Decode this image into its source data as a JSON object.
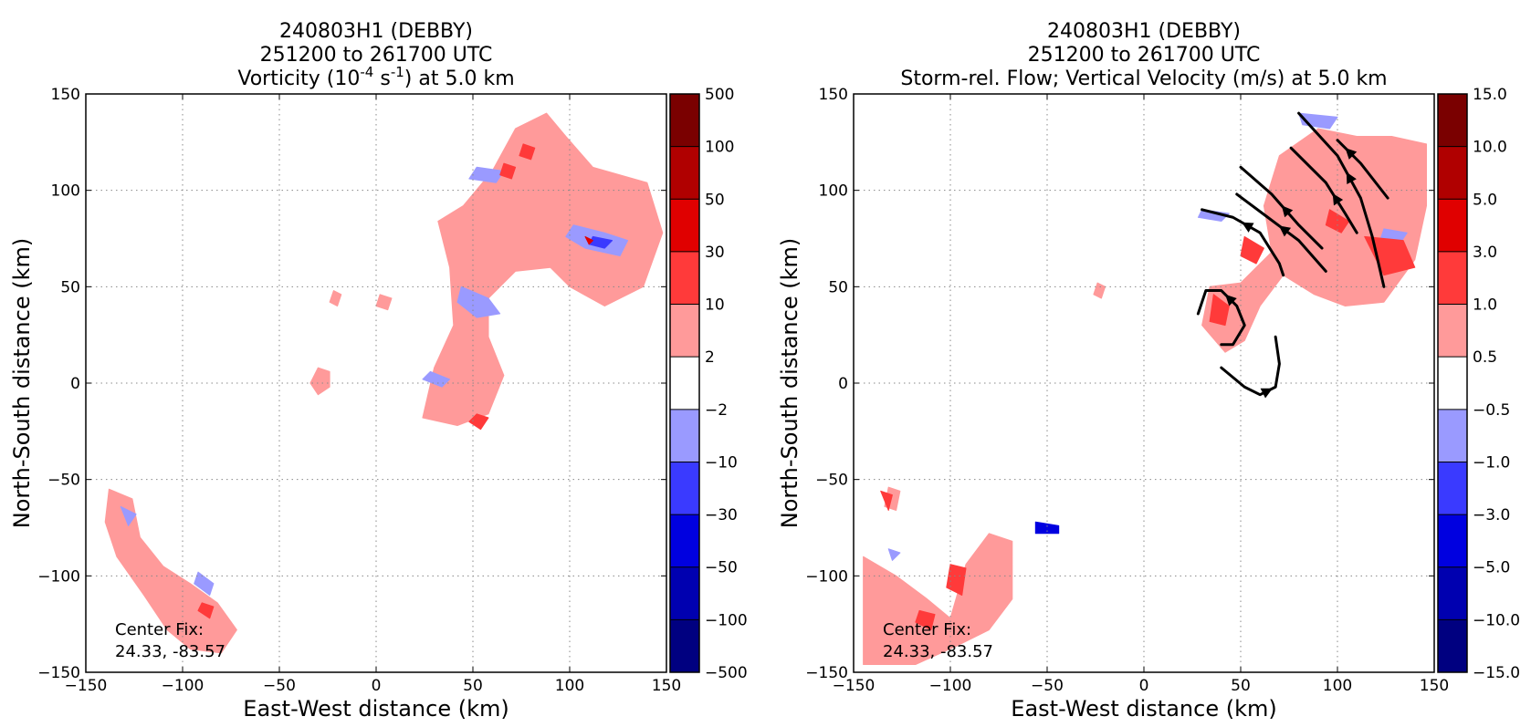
{
  "chart_data": [
    {
      "type": "contour-map",
      "title_lines": [
        "240803H1 (DEBBY)",
        "251200 to 261700 UTC"
      ],
      "title_field": {
        "prefix": "Vorticity (10",
        "exponent1": "-4",
        "middle": " s",
        "exponent2": "-1",
        "suffix": ") at 5.0 km"
      },
      "xlabel": "East-West distance (km)",
      "ylabel": "North-South distance (km)",
      "xlim": [
        -150,
        150
      ],
      "ylim": [
        -150,
        150
      ],
      "xticks": [
        "−150",
        "−100",
        "−50",
        "0",
        "50",
        "100",
        "150"
      ],
      "yticks": [
        "150",
        "100",
        "50",
        "0",
        "−50",
        "−100",
        "−150"
      ],
      "grid": true,
      "colorbar": {
        "labels": [
          "500",
          "100",
          "50",
          "30",
          "10",
          "2",
          "−2",
          "−10",
          "−30",
          "−50",
          "−100",
          "−500"
        ],
        "colors": [
          "#7a0000",
          "#b00000",
          "#e00000",
          "#ff3a3a",
          "#ff9a9a",
          "#ffffff",
          "#9a9aff",
          "#3a3aff",
          "#0000e0",
          "#0000b0",
          "#000080"
        ]
      },
      "annotation": {
        "line1": "Center Fix:",
        "line2": "24.33, -83.57"
      },
      "regions": [
        {
          "level": "pos1",
          "points": [
            [
              32,
              84
            ],
            [
              45,
              92
            ],
            [
              60,
              110
            ],
            [
              72,
              132
            ],
            [
              88,
              140
            ],
            [
              98,
              128
            ],
            [
              112,
              112
            ],
            [
              140,
              104
            ],
            [
              148,
              78
            ],
            [
              138,
              50
            ],
            [
              118,
              40
            ],
            [
              100,
              50
            ],
            [
              90,
              60
            ],
            [
              72,
              58
            ],
            [
              58,
              44
            ],
            [
              58,
              24
            ],
            [
              66,
              4
            ],
            [
              58,
              -16
            ],
            [
              42,
              -22
            ],
            [
              24,
              -18
            ],
            [
              30,
              8
            ],
            [
              40,
              30
            ],
            [
              38,
              60
            ]
          ]
        },
        {
          "level": "pos1",
          "points": [
            [
              -138,
              -55
            ],
            [
              -126,
              -60
            ],
            [
              -122,
              -80
            ],
            [
              -110,
              -95
            ],
            [
              -96,
              -104
            ],
            [
              -82,
              -114
            ],
            [
              -72,
              -128
            ],
            [
              -80,
              -140
            ],
            [
              -96,
              -138
            ],
            [
              -108,
              -128
            ],
            [
              -120,
              -110
            ],
            [
              -134,
              -90
            ],
            [
              -140,
              -72
            ]
          ]
        },
        {
          "level": "pos1",
          "points": [
            [
              -30,
              8
            ],
            [
              -24,
              6
            ],
            [
              -24,
              -2
            ],
            [
              -30,
              -6
            ],
            [
              -34,
              0
            ]
          ]
        },
        {
          "level": "pos1",
          "points": [
            [
              -22,
              48
            ],
            [
              -18,
              46
            ],
            [
              -20,
              40
            ],
            [
              -24,
              42
            ]
          ]
        },
        {
          "level": "pos1",
          "points": [
            [
              2,
              46
            ],
            [
              8,
              44
            ],
            [
              6,
              38
            ],
            [
              0,
              40
            ]
          ]
        },
        {
          "level": "neg1",
          "points": [
            [
              44,
              50
            ],
            [
              58,
              44
            ],
            [
              64,
              36
            ],
            [
              52,
              34
            ],
            [
              42,
              42
            ]
          ]
        },
        {
          "level": "neg1",
          "points": [
            [
              102,
              82
            ],
            [
              118,
              78
            ],
            [
              130,
              74
            ],
            [
              126,
              66
            ],
            [
              108,
              70
            ],
            [
              98,
              76
            ]
          ]
        },
        {
          "level": "neg1",
          "points": [
            [
              52,
              112
            ],
            [
              66,
              110
            ],
            [
              62,
              104
            ],
            [
              48,
              106
            ]
          ]
        },
        {
          "level": "neg1",
          "points": [
            [
              28,
              6
            ],
            [
              38,
              2
            ],
            [
              34,
              -2
            ],
            [
              24,
              2
            ]
          ]
        },
        {
          "level": "neg1",
          "points": [
            [
              -92,
              -98
            ],
            [
              -84,
              -104
            ],
            [
              -86,
              -110
            ],
            [
              -94,
              -104
            ]
          ]
        },
        {
          "level": "neg1",
          "points": [
            [
              -132,
              -64
            ],
            [
              -124,
              -68
            ],
            [
              -128,
              -74
            ]
          ]
        },
        {
          "level": "pos2",
          "points": [
            [
              76,
              124
            ],
            [
              82,
              122
            ],
            [
              80,
              116
            ],
            [
              74,
              118
            ]
          ]
        },
        {
          "level": "pos2",
          "points": [
            [
              66,
              114
            ],
            [
              72,
              112
            ],
            [
              70,
              106
            ],
            [
              64,
              108
            ]
          ]
        },
        {
          "level": "pos2",
          "points": [
            [
              52,
              -16
            ],
            [
              58,
              -18
            ],
            [
              54,
              -24
            ],
            [
              48,
              -20
            ]
          ]
        },
        {
          "level": "pos2",
          "points": [
            [
              -90,
              -114
            ],
            [
              -84,
              -116
            ],
            [
              -86,
              -122
            ],
            [
              -92,
              -118
            ]
          ]
        },
        {
          "level": "neg2",
          "points": [
            [
              112,
              76
            ],
            [
              122,
              74
            ],
            [
              118,
              70
            ],
            [
              110,
              72
            ]
          ]
        },
        {
          "level": "pos3",
          "points": [
            [
              108,
              76
            ],
            [
              112,
              74
            ],
            [
              110,
              72
            ]
          ]
        }
      ]
    },
    {
      "type": "contour-map",
      "title_lines": [
        "240803H1 (DEBBY)",
        "251200 to 261700 UTC",
        "Storm-rel. Flow; Vertical Velocity (m/s) at 5.0 km"
      ],
      "xlabel": "East-West distance (km)",
      "ylabel": "North-South distance (km)",
      "xlim": [
        -150,
        150
      ],
      "ylim": [
        -150,
        150
      ],
      "xticks": [
        "−150",
        "−100",
        "−50",
        "0",
        "50",
        "100",
        "150"
      ],
      "yticks": [
        "150",
        "100",
        "50",
        "0",
        "−50",
        "−100",
        "−150"
      ],
      "grid": true,
      "colorbar": {
        "labels": [
          "15.0",
          "10.0",
          "5.0",
          "3.0",
          "1.0",
          "0.5",
          "−0.5",
          "−1.0",
          "−3.0",
          "−5.0",
          "−10.0",
          "−15.0"
        ],
        "colors": [
          "#7a0000",
          "#b00000",
          "#e00000",
          "#ff3a3a",
          "#ff9a9a",
          "#ffffff",
          "#9a9aff",
          "#3a3aff",
          "#0000e0",
          "#0000b0",
          "#000080"
        ]
      },
      "annotation": {
        "line1": "Center Fix:",
        "line2": "24.33, -83.57"
      },
      "regions": [
        {
          "level": "pos1",
          "points": [
            [
              34,
              50
            ],
            [
              50,
              52
            ],
            [
              66,
              68
            ],
            [
              62,
              92
            ],
            [
              70,
              118
            ],
            [
              90,
              132
            ],
            [
              110,
              128
            ],
            [
              128,
              128
            ],
            [
              146,
              124
            ],
            [
              146,
              92
            ],
            [
              140,
              64
            ],
            [
              124,
              42
            ],
            [
              104,
              40
            ],
            [
              88,
              46
            ],
            [
              72,
              56
            ],
            [
              60,
              40
            ],
            [
              52,
              22
            ],
            [
              42,
              16
            ],
            [
              30,
              30
            ]
          ]
        },
        {
          "level": "pos1",
          "points": [
            [
              -145,
              -90
            ],
            [
              -128,
              -100
            ],
            [
              -112,
              -112
            ],
            [
              -100,
              -122
            ],
            [
              -92,
              -94
            ],
            [
              -80,
              -78
            ],
            [
              -68,
              -82
            ],
            [
              -68,
              -112
            ],
            [
              -80,
              -128
            ],
            [
              -96,
              -136
            ],
            [
              -118,
              -146
            ],
            [
              -145,
              -146
            ]
          ]
        },
        {
          "level": "pos1",
          "points": [
            [
              -24,
              52
            ],
            [
              -20,
              50
            ],
            [
              -22,
              44
            ],
            [
              -26,
              46
            ]
          ]
        },
        {
          "level": "pos1",
          "points": [
            [
              -132,
              -54
            ],
            [
              -126,
              -56
            ],
            [
              -128,
              -66
            ],
            [
              -134,
              -64
            ]
          ]
        },
        {
          "level": "neg1",
          "points": [
            [
              80,
              140
            ],
            [
              100,
              138
            ],
            [
              96,
              132
            ],
            [
              82,
              134
            ]
          ]
        },
        {
          "level": "neg1",
          "points": [
            [
              30,
              90
            ],
            [
              44,
              88
            ],
            [
              40,
              84
            ],
            [
              28,
              86
            ]
          ]
        },
        {
          "level": "neg1",
          "points": [
            [
              124,
              80
            ],
            [
              136,
              78
            ],
            [
              132,
              72
            ],
            [
              122,
              74
            ]
          ]
        },
        {
          "level": "neg1",
          "points": [
            [
              -132,
              -86
            ],
            [
              -126,
              -88
            ],
            [
              -130,
              -92
            ]
          ]
        },
        {
          "level": "pos2",
          "points": [
            [
              36,
              46
            ],
            [
              44,
              40
            ],
            [
              42,
              30
            ],
            [
              34,
              32
            ]
          ]
        },
        {
          "level": "pos2",
          "points": [
            [
              114,
              76
            ],
            [
              134,
              74
            ],
            [
              140,
              60
            ],
            [
              124,
              56
            ]
          ]
        },
        {
          "level": "pos2",
          "points": [
            [
              52,
              76
            ],
            [
              62,
              70
            ],
            [
              58,
              62
            ],
            [
              50,
              66
            ]
          ]
        },
        {
          "level": "pos2",
          "points": [
            [
              96,
              90
            ],
            [
              106,
              84
            ],
            [
              102,
              78
            ],
            [
              94,
              82
            ]
          ]
        },
        {
          "level": "pos2",
          "points": [
            [
              -100,
              -94
            ],
            [
              -92,
              -96
            ],
            [
              -94,
              -110
            ],
            [
              -102,
              -106
            ]
          ]
        },
        {
          "level": "pos2",
          "points": [
            [
              -136,
              -56
            ],
            [
              -130,
              -58
            ],
            [
              -132,
              -66
            ]
          ]
        },
        {
          "level": "pos2",
          "points": [
            [
              -116,
              -118
            ],
            [
              -108,
              -120
            ],
            [
              -110,
              -128
            ],
            [
              -118,
              -124
            ]
          ]
        },
        {
          "level": "neg3",
          "points": [
            [
              -56,
              -72
            ],
            [
              -44,
              -74
            ],
            [
              -44,
              -78
            ],
            [
              -56,
              -78
            ]
          ]
        }
      ],
      "streamlines": [
        [
          [
            80,
            140
          ],
          [
            100,
            118
          ],
          [
            112,
            96
          ],
          [
            118,
            76
          ],
          [
            124,
            50
          ]
        ],
        [
          [
            100,
            126
          ],
          [
            112,
            114
          ],
          [
            126,
            96
          ]
        ],
        [
          [
            76,
            122
          ],
          [
            94,
            104
          ],
          [
            104,
            88
          ],
          [
            110,
            78
          ]
        ],
        [
          [
            50,
            112
          ],
          [
            66,
            98
          ],
          [
            80,
            82
          ],
          [
            92,
            70
          ]
        ],
        [
          [
            48,
            98
          ],
          [
            64,
            86
          ],
          [
            80,
            74
          ],
          [
            94,
            58
          ]
        ],
        [
          [
            30,
            90
          ],
          [
            46,
            86
          ],
          [
            60,
            78
          ],
          [
            70,
            62
          ],
          [
            72,
            56
          ]
        ],
        [
          [
            28,
            36
          ],
          [
            32,
            48
          ],
          [
            40,
            48
          ],
          [
            48,
            40
          ],
          [
            52,
            30
          ],
          [
            46,
            20
          ],
          [
            40,
            20
          ]
        ],
        [
          [
            68,
            24
          ],
          [
            70,
            10
          ],
          [
            68,
            -2
          ],
          [
            60,
            -6
          ],
          [
            52,
            -2
          ],
          [
            40,
            8
          ]
        ]
      ]
    }
  ]
}
